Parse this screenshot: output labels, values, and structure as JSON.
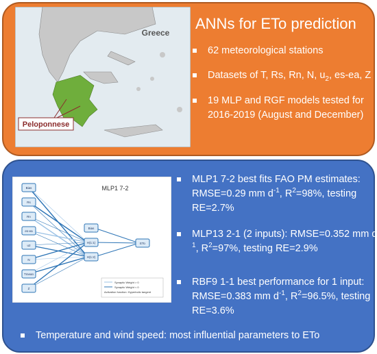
{
  "map": {
    "country": "Greece",
    "region": "Peloponnese"
  },
  "title": "ANNs for ETo prediction",
  "top_bullets": [
    [
      {
        "text": "62 meteorological stations"
      }
    ],
    [
      {
        "text": "Datasets of T, Rs, Rn, N, u"
      },
      {
        "sub": "2"
      },
      {
        "text": ", es-ea, Z"
      }
    ],
    [
      {
        "text": "19 MLP and RGF models tested for 2016-2019 (August and December)"
      }
    ]
  ],
  "network": {
    "title": "MLP1 7-2",
    "inputs": [
      "Bias",
      "Rs",
      "Rn",
      "es-ea",
      "u2",
      "N",
      "Tmean",
      "Z"
    ],
    "hidden": [
      "Bias",
      "H(1:1)",
      "H(1:2)"
    ],
    "output": "ETo",
    "legend": [
      "Synaptic Weight > 0",
      "Synaptic Weight < 0",
      "Activation function: Hyperbolic tangent"
    ]
  },
  "bottom_bullets": [
    [
      {
        "text": "MLP1 7-2 best  fits FAO PM estimates: RMSE=0.29 mm d"
      },
      {
        "sup": "-1"
      },
      {
        "text": ", R"
      },
      {
        "sup": "2"
      },
      {
        "text": "=98%, testing RE=2.7%"
      }
    ],
    [
      {
        "text": "MLP13 2-1 (2 inputs): RMSE=0.352 mm d"
      },
      {
        "sup": "-1"
      },
      {
        "text": ", R"
      },
      {
        "sup": "2"
      },
      {
        "text": "=97%, testing RE=2.9%"
      }
    ],
    [
      {
        "text": "RBF9 1-1 best performance for  1 input: RMSE=0.383 mm d"
      },
      {
        "sup": "-1"
      },
      {
        "text": ", R"
      },
      {
        "sup": "2"
      },
      {
        "text": "=96.5%, testing RE=3.6%"
      }
    ]
  ],
  "footer": "Temperature and wind speed: most influential parameters to ETo"
}
